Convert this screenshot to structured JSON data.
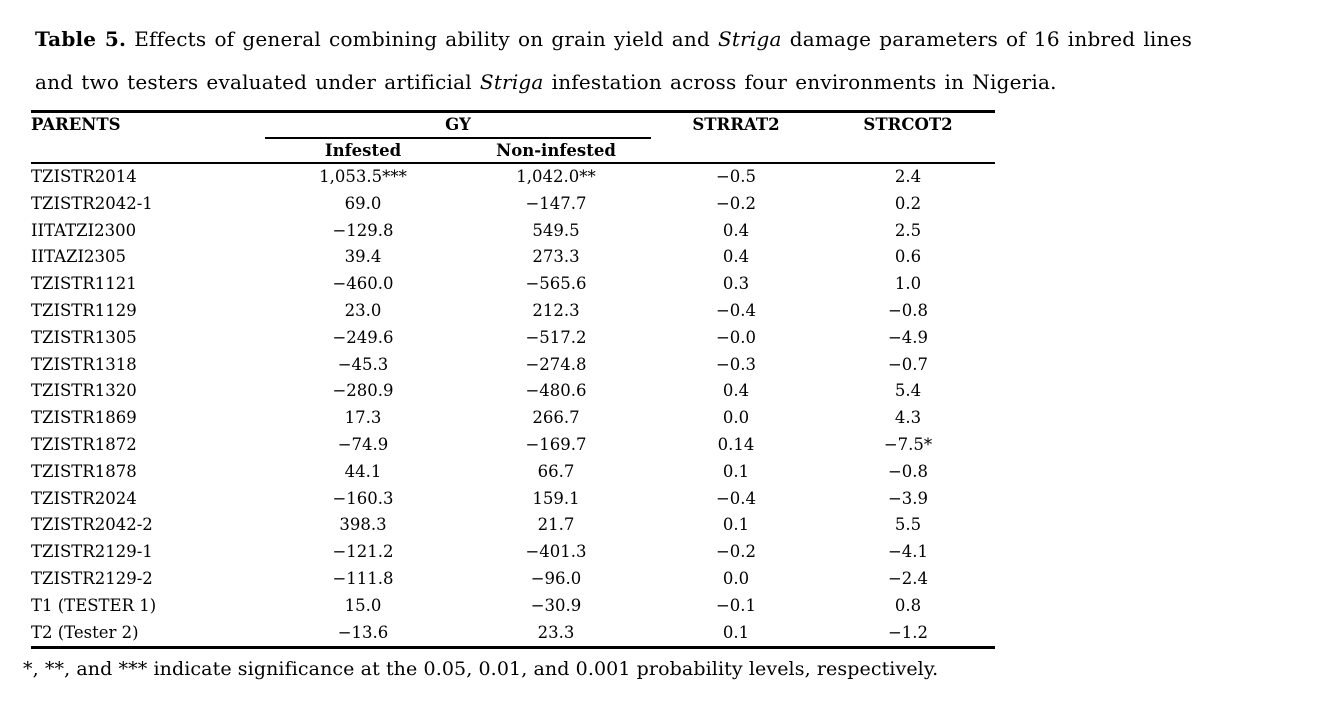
{
  "caption": {
    "lines": [
      {
        "segments": [
          {
            "text": "Table 5.",
            "style": "bold"
          },
          {
            "text": " Effects of general combining ability on grain yield and ",
            "style": "normal"
          },
          {
            "text": "Striga",
            "style": "italic"
          },
          {
            "text": " damage parameters of 16 inbred lines",
            "style": "normal"
          }
        ]
      },
      {
        "segments": [
          {
            "text": "and two testers evaluated under artificial ",
            "style": "normal"
          },
          {
            "text": "Striga",
            "style": "italic"
          },
          {
            "text": " infestation across four environments in Nigeria.",
            "style": "normal"
          }
        ]
      }
    ]
  },
  "table": {
    "header": {
      "parents": "PARENTS",
      "gy": "GY",
      "infested": "Infested",
      "non_infested": "Non-infested",
      "strrat2": "STRRAT2",
      "strcot2": "STRCOT2"
    },
    "rows": [
      {
        "parent": "TZISTR2014",
        "gy_infested": "1,053.5***",
        "gy_non_infested": "1,042.0**",
        "strrat2": "−0.5",
        "strcot2": "2.4"
      },
      {
        "parent": "TZISTR2042-1",
        "gy_infested": "69.0",
        "gy_non_infested": "−147.7",
        "strrat2": "−0.2",
        "strcot2": "0.2"
      },
      {
        "parent": "IITATZI2300",
        "gy_infested": "−129.8",
        "gy_non_infested": "549.5",
        "strrat2": "0.4",
        "strcot2": "2.5"
      },
      {
        "parent": "IITAZI2305",
        "gy_infested": "39.4",
        "gy_non_infested": "273.3",
        "strrat2": "0.4",
        "strcot2": "0.6"
      },
      {
        "parent": "TZISTR1121",
        "gy_infested": "−460.0",
        "gy_non_infested": "−565.6",
        "strrat2": "0.3",
        "strcot2": "1.0"
      },
      {
        "parent": "TZISTR1129",
        "gy_infested": "23.0",
        "gy_non_infested": "212.3",
        "strrat2": "−0.4",
        "strcot2": "−0.8"
      },
      {
        "parent": "TZISTR1305",
        "gy_infested": "−249.6",
        "gy_non_infested": "−517.2",
        "strrat2": "−0.0",
        "strcot2": "−4.9"
      },
      {
        "parent": "TZISTR1318",
        "gy_infested": "−45.3",
        "gy_non_infested": "−274.8",
        "strrat2": "−0.3",
        "strcot2": "−0.7"
      },
      {
        "parent": "TZISTR1320",
        "gy_infested": "−280.9",
        "gy_non_infested": "−480.6",
        "strrat2": "0.4",
        "strcot2": "5.4"
      },
      {
        "parent": "TZISTR1869",
        "gy_infested": "17.3",
        "gy_non_infested": "266.7",
        "strrat2": "0.0",
        "strcot2": "4.3"
      },
      {
        "parent": "TZISTR1872",
        "gy_infested": "−74.9",
        "gy_non_infested": "−169.7",
        "strrat2": "0.14",
        "strcot2": "−7.5*"
      },
      {
        "parent": "TZISTR1878",
        "gy_infested": "44.1",
        "gy_non_infested": "66.7",
        "strrat2": "0.1",
        "strcot2": "−0.8"
      },
      {
        "parent": "TZISTR2024",
        "gy_infested": "−160.3",
        "gy_non_infested": "159.1",
        "strrat2": "−0.4",
        "strcot2": "−3.9"
      },
      {
        "parent": "TZISTR2042-2",
        "gy_infested": "398.3",
        "gy_non_infested": "21.7",
        "strrat2": "0.1",
        "strcot2": "5.5"
      },
      {
        "parent": "TZISTR2129-1",
        "gy_infested": "−121.2",
        "gy_non_infested": "−401.3",
        "strrat2": "−0.2",
        "strcot2": "−4.1"
      },
      {
        "parent": "TZISTR2129-2",
        "gy_infested": "−111.8",
        "gy_non_infested": "−96.0",
        "strrat2": "0.0",
        "strcot2": "−2.4"
      },
      {
        "parent": "T1 (TESTER 1)",
        "gy_infested": "15.0",
        "gy_non_infested": "−30.9",
        "strrat2": "−0.1",
        "strcot2": "0.8"
      },
      {
        "parent": "T2 (Tester 2)",
        "gy_infested": "−13.6",
        "gy_non_infested": "23.3",
        "strrat2": "0.1",
        "strcot2": "−1.2"
      }
    ]
  },
  "footnote": "*, **, and *** indicate significance at the 0.05, 0.01, and 0.001 probability levels, respectively."
}
